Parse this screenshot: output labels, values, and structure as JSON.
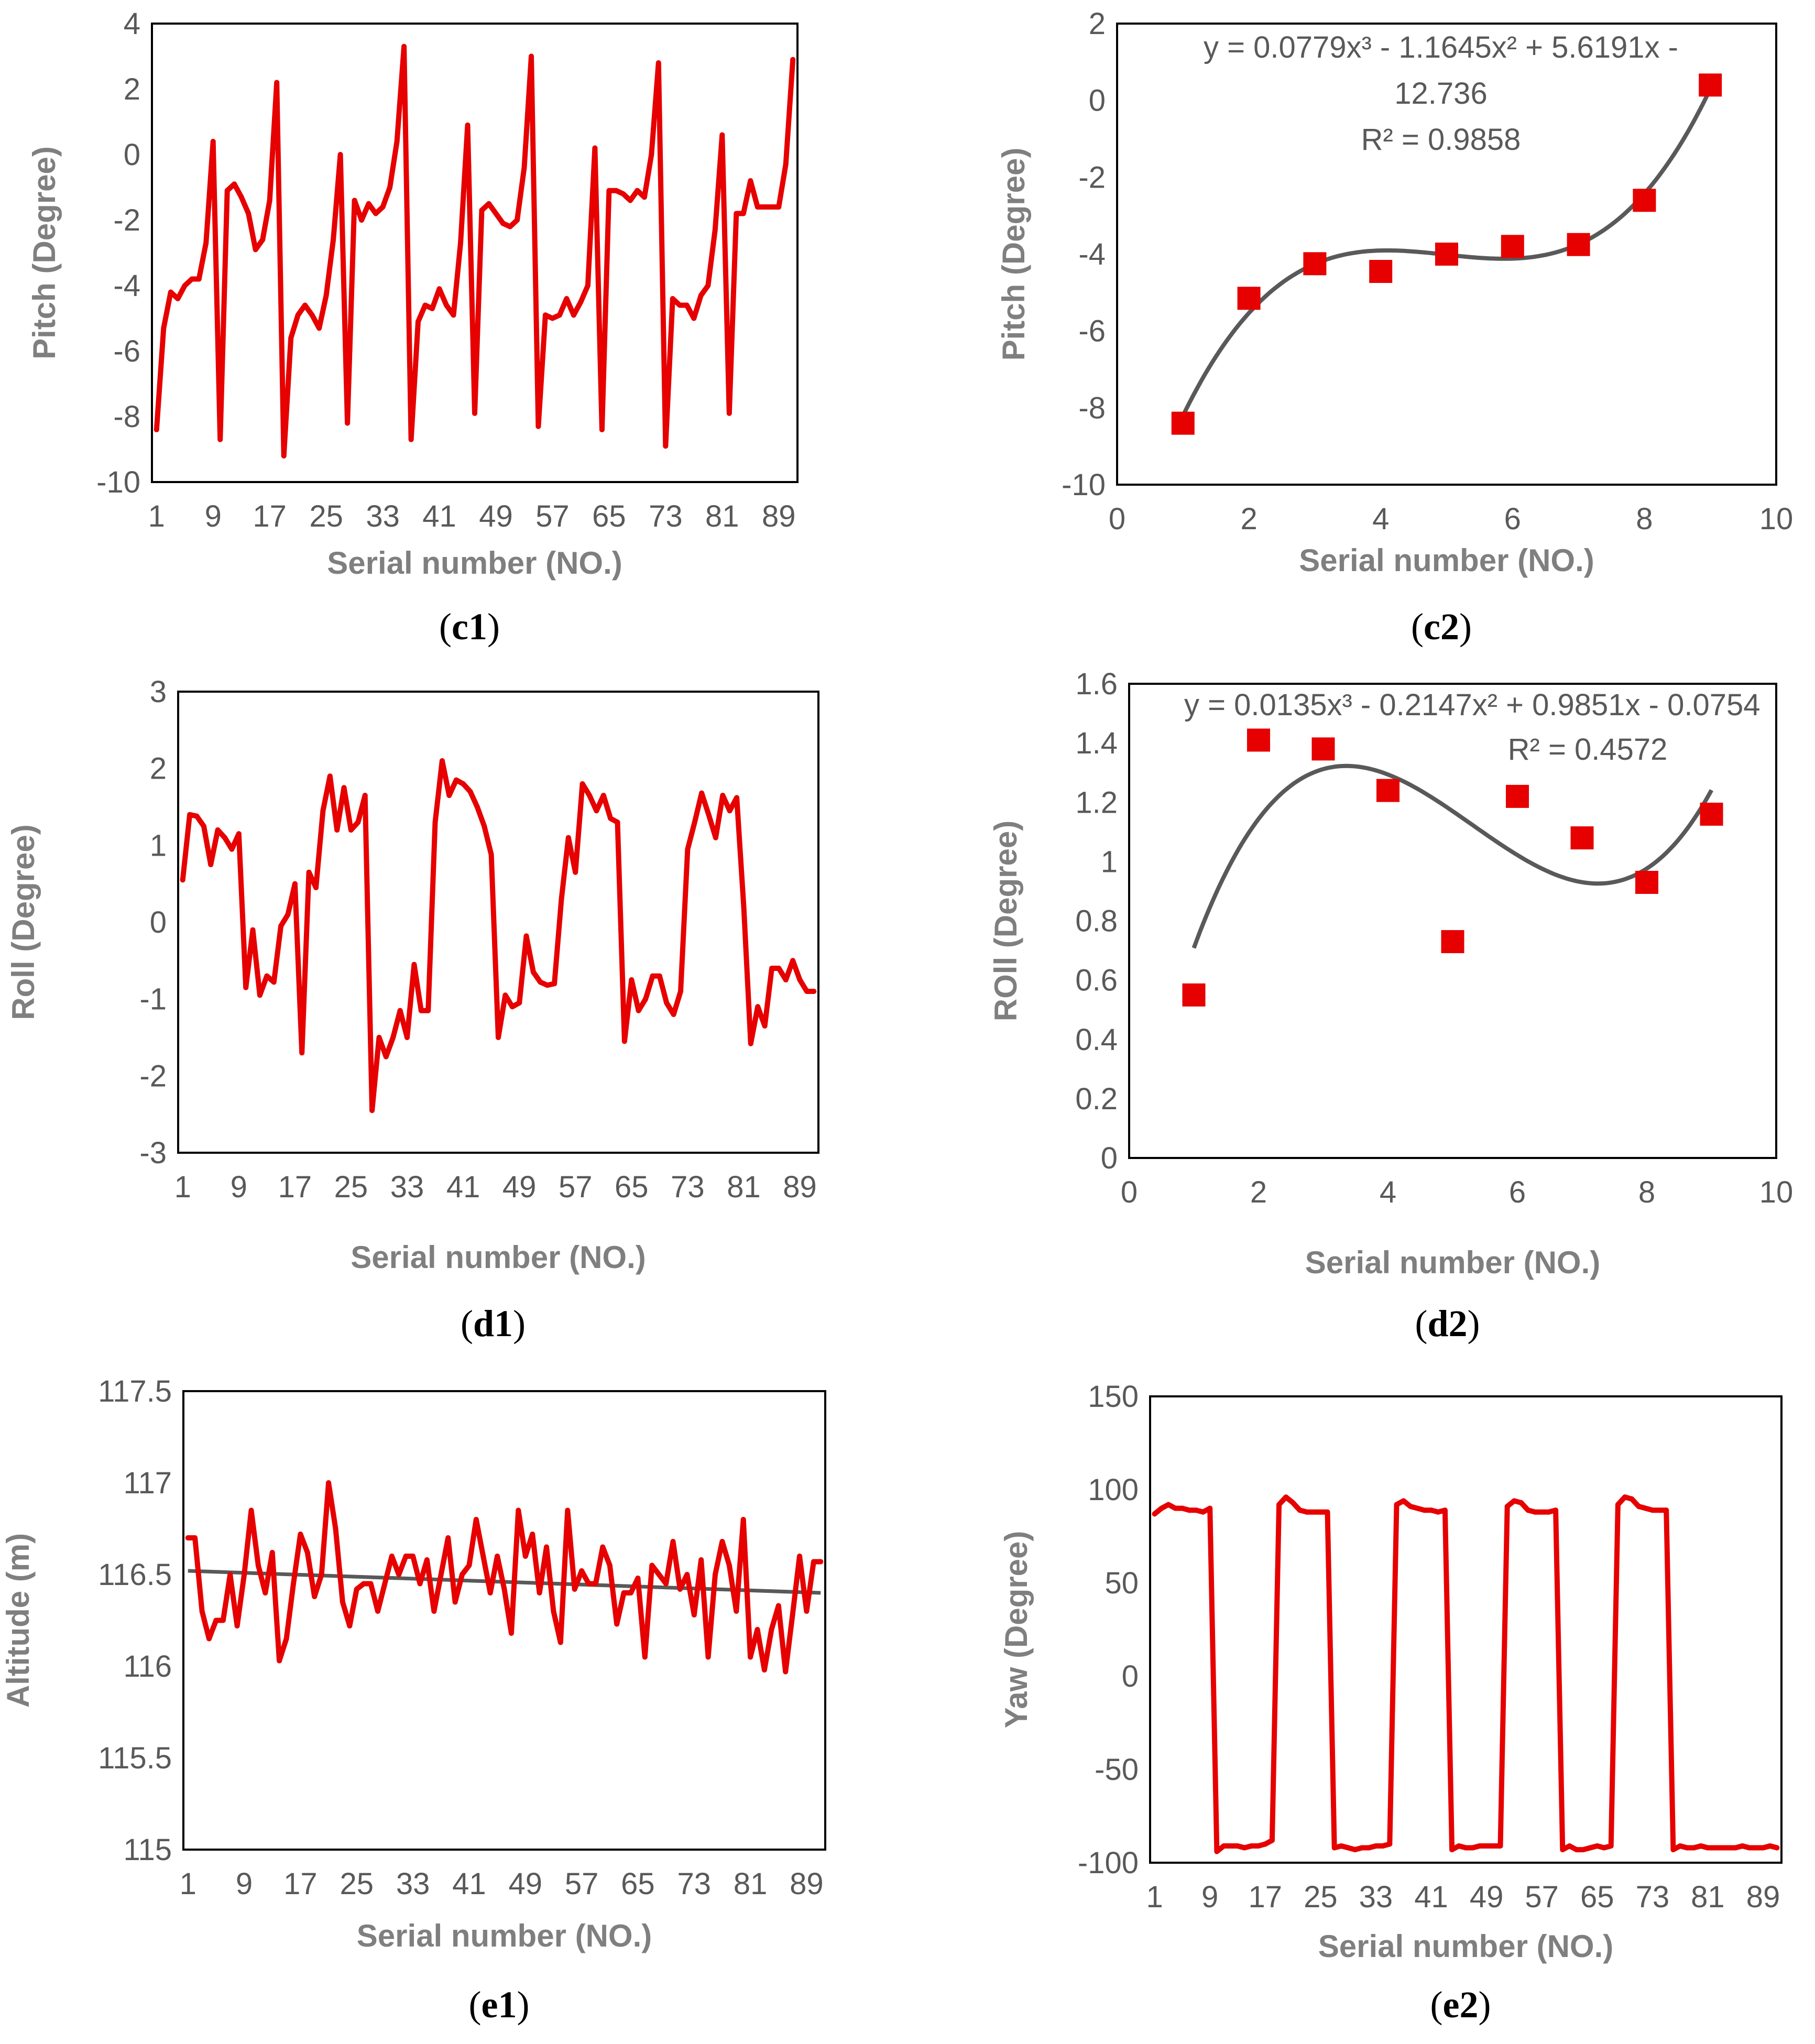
{
  "colors": {
    "series": "#e60000",
    "trend": "#595959",
    "text": "#595959",
    "label": "#7f7f7f"
  },
  "chart_data": [
    {
      "id": "c1",
      "type": "line",
      "panel_label": "c1",
      "xlabel": "Serial number (NO.)",
      "ylabel": "Pitch  (Degree)",
      "ylim": [
        -10,
        4
      ],
      "yticks": [
        -10,
        -8,
        -6,
        -4,
        -2,
        0,
        2,
        4
      ],
      "xticks": [
        "1",
        "9",
        "17",
        "25",
        "33",
        "41",
        "49",
        "57",
        "65",
        "73",
        "81",
        "89"
      ],
      "x": [
        1,
        2,
        3,
        4,
        5,
        6,
        7,
        8,
        9,
        10,
        11,
        12,
        13,
        14,
        15,
        16,
        17,
        18,
        19,
        20,
        21,
        22,
        23,
        24,
        25,
        26,
        27,
        28,
        29,
        30,
        31,
        32,
        33,
        34,
        35,
        36,
        37,
        38,
        39,
        40,
        41,
        42,
        43,
        44,
        45,
        46,
        47,
        48,
        49,
        50,
        51,
        52,
        53,
        54,
        55,
        56,
        57,
        58,
        59,
        60,
        61,
        62,
        63,
        64,
        65,
        66,
        67,
        68,
        69,
        70,
        71,
        72,
        73,
        74,
        75,
        76,
        77,
        78,
        79,
        80,
        81,
        82,
        83,
        84,
        85,
        86,
        87,
        88,
        89,
        90,
        91
      ],
      "values": [
        -8.4,
        -5.3,
        -4.2,
        -4.4,
        -4.0,
        -3.8,
        -3.8,
        -2.7,
        0.4,
        -8.7,
        -1.1,
        -0.9,
        -1.3,
        -1.8,
        -2.9,
        -2.6,
        -1.4,
        2.2,
        -9.2,
        -5.6,
        -4.9,
        -4.6,
        -4.9,
        -5.3,
        -4.3,
        -2.6,
        0.0,
        -8.2,
        -1.4,
        -2.0,
        -1.5,
        -1.8,
        -1.6,
        -1.0,
        0.4,
        3.3,
        -8.7,
        -5.1,
        -4.6,
        -4.7,
        -4.1,
        -4.6,
        -4.9,
        -2.7,
        0.9,
        -7.9,
        -1.7,
        -1.5,
        -1.8,
        -2.1,
        -2.2,
        -2.0,
        -0.4,
        3.0,
        -8.3,
        -4.9,
        -5.0,
        -4.9,
        -4.4,
        -4.9,
        -4.5,
        -4.0,
        0.2,
        -8.4,
        -1.1,
        -1.1,
        -1.2,
        -1.4,
        -1.1,
        -1.3,
        0.0,
        2.8,
        -8.9,
        -4.4,
        -4.6,
        -4.6,
        -5.0,
        -4.3,
        -4.0,
        -2.3,
        0.6,
        -7.9,
        -1.8,
        -1.8,
        -0.8,
        -1.6,
        -1.6,
        -1.6,
        -1.6,
        -0.3,
        2.9
      ]
    },
    {
      "id": "c2",
      "type": "scatter",
      "panel_label": "c2",
      "xlabel": "Serial number (NO.)",
      "ylabel": "Pitch  (Degree)",
      "xlim": [
        0,
        10
      ],
      "ylim": [
        -10,
        2
      ],
      "xticks": [
        0,
        2,
        4,
        6,
        8,
        10
      ],
      "yticks": [
        -10,
        -8,
        -6,
        -4,
        -2,
        0,
        2
      ],
      "x": [
        1,
        2,
        3,
        4,
        5,
        6,
        7,
        8,
        9
      ],
      "values": [
        -8.4,
        -5.15,
        -4.25,
        -4.45,
        -4.0,
        -3.8,
        -3.75,
        -2.6,
        0.4
      ],
      "trendline": {
        "type": "poly3",
        "coef": [
          0.0779,
          -1.1645,
          5.6191,
          -12.736
        ],
        "range": [
          1,
          9
        ]
      },
      "equation_line1": "y = 0.0779x³ - 1.1645x² + 5.6191x -",
      "equation_line2": "12.736",
      "r2": "R² = 0.9858"
    },
    {
      "id": "d1",
      "type": "line",
      "panel_label": "d1",
      "xlabel": "Serial number (NO.)",
      "ylabel": "Roll (Degree)",
      "ylim": [
        -3,
        3
      ],
      "yticks": [
        -3,
        -2,
        -1,
        0,
        1,
        2,
        3
      ],
      "xticks": [
        "1",
        "9",
        "17",
        "25",
        "33",
        "41",
        "49",
        "57",
        "65",
        "73",
        "81",
        "89"
      ],
      "x": [
        1,
        2,
        3,
        4,
        5,
        6,
        7,
        8,
        9,
        10,
        11,
        12,
        13,
        14,
        15,
        16,
        17,
        18,
        19,
        20,
        21,
        22,
        23,
        24,
        25,
        26,
        27,
        28,
        29,
        30,
        31,
        32,
        33,
        34,
        35,
        36,
        37,
        38,
        39,
        40,
        41,
        42,
        43,
        44,
        45,
        46,
        47,
        48,
        49,
        50,
        51,
        52,
        53,
        54,
        55,
        56,
        57,
        58,
        59,
        60,
        61,
        62,
        63,
        64,
        65,
        66,
        67,
        68,
        69,
        70,
        71,
        72,
        73,
        74,
        75,
        76,
        77,
        78,
        79,
        80,
        81,
        82,
        83,
        84,
        85,
        86,
        87,
        88,
        89,
        90,
        91
      ],
      "values": [
        0.55,
        1.4,
        1.38,
        1.25,
        0.75,
        1.2,
        1.1,
        0.95,
        1.15,
        -0.85,
        -0.1,
        -0.95,
        -0.7,
        -0.78,
        -0.05,
        0.1,
        0.5,
        -1.7,
        0.65,
        0.45,
        1.45,
        1.9,
        1.2,
        1.75,
        1.2,
        1.3,
        1.65,
        -2.45,
        -1.5,
        -1.75,
        -1.5,
        -1.15,
        -1.5,
        -0.55,
        -1.15,
        -1.15,
        1.3,
        2.1,
        1.65,
        1.85,
        1.8,
        1.7,
        1.5,
        1.25,
        0.88,
        -1.5,
        -0.95,
        -1.1,
        -1.05,
        -0.18,
        -0.65,
        -0.78,
        -0.82,
        -0.8,
        0.3,
        1.1,
        0.65,
        1.8,
        1.65,
        1.45,
        1.65,
        1.35,
        1.3,
        -1.55,
        -0.75,
        -1.15,
        -1.0,
        -0.7,
        -0.7,
        -1.05,
        -1.2,
        -0.9,
        0.95,
        1.3,
        1.68,
        1.4,
        1.1,
        1.65,
        1.45,
        1.62,
        0.2,
        -1.58,
        -1.1,
        -1.35,
        -0.6,
        -0.6,
        -0.75,
        -0.5,
        -0.75,
        -0.9,
        -0.9
      ]
    },
    {
      "id": "d2",
      "type": "scatter",
      "panel_label": "d2",
      "xlabel": "Serial number (NO.)",
      "ylabel": "ROll (Degree)",
      "xlim": [
        0,
        10
      ],
      "ylim": [
        0,
        1.6
      ],
      "xticks": [
        0,
        2,
        4,
        6,
        8,
        10
      ],
      "yticks": [
        0,
        0.2,
        0.4,
        0.6,
        0.8,
        1,
        1.2,
        1.4,
        1.6
      ],
      "ytick_labels": [
        "0",
        "0.2",
        "0.4",
        "0.6",
        "0.8",
        "1",
        "1.2",
        "1.4",
        "1.6"
      ],
      "x": [
        1,
        2,
        3,
        4,
        5,
        6,
        7,
        8,
        9
      ],
      "values": [
        0.55,
        1.41,
        1.38,
        1.24,
        0.73,
        1.22,
        1.08,
        0.93,
        1.16
      ],
      "trendline": {
        "type": "poly3",
        "coef": [
          0.0135,
          -0.2147,
          0.9851,
          -0.0754
        ],
        "range": [
          1,
          9
        ]
      },
      "equation_line1": "y = 0.0135x³ - 0.2147x² + 0.9851x - 0.0754",
      "r2": "R² = 0.4572"
    },
    {
      "id": "e1",
      "type": "line",
      "panel_label": "e1",
      "xlabel": "Serial number (NO.)",
      "ylabel": "Altitude (m)",
      "ylim": [
        115,
        117.5
      ],
      "yticks": [
        115,
        115.5,
        116,
        116.5,
        117,
        117.5
      ],
      "ytick_labels": [
        "115",
        "115.5",
        "116",
        "116.5",
        "117",
        "117.5"
      ],
      "xticks": [
        "1",
        "9",
        "17",
        "25",
        "33",
        "41",
        "49",
        "57",
        "65",
        "73",
        "81",
        "89"
      ],
      "x": [
        1,
        2,
        3,
        4,
        5,
        6,
        7,
        8,
        9,
        10,
        11,
        12,
        13,
        14,
        15,
        16,
        17,
        18,
        19,
        20,
        21,
        22,
        23,
        24,
        25,
        26,
        27,
        28,
        29,
        30,
        31,
        32,
        33,
        34,
        35,
        36,
        37,
        38,
        39,
        40,
        41,
        42,
        43,
        44,
        45,
        46,
        47,
        48,
        49,
        50,
        51,
        52,
        53,
        54,
        55,
        56,
        57,
        58,
        59,
        60,
        61,
        62,
        63,
        64,
        65,
        66,
        67,
        68,
        69,
        70,
        71,
        72,
        73,
        74,
        75,
        76,
        77,
        78,
        79,
        80,
        81,
        82,
        83,
        84,
        85,
        86,
        87,
        88,
        89,
        90,
        91
      ],
      "values": [
        116.7,
        116.7,
        116.3,
        116.15,
        116.25,
        116.25,
        116.5,
        116.22,
        116.5,
        116.85,
        116.55,
        116.4,
        116.62,
        116.03,
        116.15,
        116.45,
        116.72,
        116.62,
        116.38,
        116.5,
        117.0,
        116.75,
        116.35,
        116.22,
        116.42,
        116.45,
        116.45,
        116.3,
        116.45,
        116.6,
        116.5,
        116.6,
        116.6,
        116.45,
        116.58,
        116.3,
        116.5,
        116.7,
        116.35,
        116.5,
        116.55,
        116.8,
        116.6,
        116.4,
        116.6,
        116.42,
        116.18,
        116.85,
        116.6,
        116.72,
        116.4,
        116.65,
        116.3,
        116.13,
        116.85,
        116.42,
        116.52,
        116.45,
        116.45,
        116.65,
        116.55,
        116.23,
        116.4,
        116.4,
        116.48,
        116.05,
        116.55,
        116.5,
        116.45,
        116.68,
        116.42,
        116.5,
        116.28,
        116.58,
        116.05,
        116.5,
        116.68,
        116.55,
        116.3,
        116.8,
        116.05,
        116.2,
        115.98,
        116.2,
        116.33,
        115.97,
        116.28,
        116.6,
        116.3,
        116.57,
        116.57
      ],
      "trendline": {
        "type": "linear",
        "start": 116.52,
        "end": 116.4
      }
    },
    {
      "id": "e2",
      "type": "line",
      "panel_label": "e2",
      "xlabel": "Serial number (NO.)",
      "ylabel": "Yaw (Degree)",
      "ylim": [
        -100,
        150
      ],
      "yticks": [
        -100,
        -50,
        0,
        50,
        100,
        150
      ],
      "xticks": [
        "1",
        "9",
        "17",
        "25",
        "33",
        "41",
        "49",
        "57",
        "65",
        "73",
        "81",
        "89"
      ],
      "x": [
        1,
        2,
        3,
        4,
        5,
        6,
        7,
        8,
        9,
        10,
        11,
        12,
        13,
        14,
        15,
        16,
        17,
        18,
        19,
        20,
        21,
        22,
        23,
        24,
        25,
        26,
        27,
        28,
        29,
        30,
        31,
        32,
        33,
        34,
        35,
        36,
        37,
        38,
        39,
        40,
        41,
        42,
        43,
        44,
        45,
        46,
        47,
        48,
        49,
        50,
        51,
        52,
        53,
        54,
        55,
        56,
        57,
        58,
        59,
        60,
        61,
        62,
        63,
        64,
        65,
        66,
        67,
        68,
        69,
        70,
        71,
        72,
        73,
        74,
        75,
        76,
        77,
        78,
        79,
        80,
        81,
        82,
        83,
        84,
        85,
        86,
        87,
        88,
        89,
        90,
        91
      ],
      "values": [
        87,
        90,
        92,
        90,
        90,
        89,
        89,
        88,
        90,
        -94,
        -91,
        -91,
        -91,
        -92,
        -91,
        -91,
        -90,
        -88,
        92,
        96,
        93,
        89,
        88,
        88,
        88,
        88,
        -92,
        -91,
        -92,
        -93,
        -92,
        -92,
        -91,
        -91,
        -90,
        92,
        94,
        91,
        90,
        89,
        89,
        88,
        89,
        -93,
        -91,
        -92,
        -92,
        -91,
        -91,
        -91,
        -91,
        91,
        94,
        93,
        89,
        88,
        88,
        88,
        89,
        -93,
        -91,
        -93,
        -93,
        -92,
        -91,
        -92,
        -91,
        92,
        96,
        95,
        91,
        90,
        89,
        89,
        89,
        -93,
        -91,
        -92,
        -92,
        -91,
        -92,
        -92,
        -92,
        -92,
        -92,
        -91,
        -92,
        -92,
        -92,
        -91,
        -92
      ]
    }
  ]
}
